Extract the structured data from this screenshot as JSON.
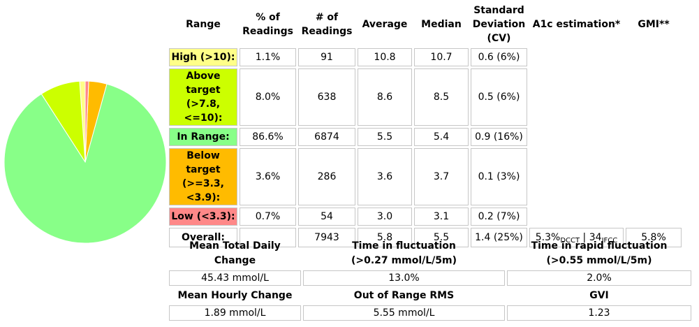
{
  "colors": {
    "high": "#ffff88",
    "above": "#ccff00",
    "inrange": "#88ff88",
    "below": "#ffbb00",
    "low": "#ff8888"
  },
  "chart_data": {
    "type": "pie",
    "slices": [
      {
        "label": "High (>10):",
        "value": 1.1,
        "color": "#ffff88"
      },
      {
        "label": "Above target (>7.8, <=10):",
        "value": 8.0,
        "color": "#ccff00"
      },
      {
        "label": "In Range:",
        "value": 86.6,
        "color": "#88ff88"
      },
      {
        "label": "Below target (>=3.3, <3.9):",
        "value": 3.6,
        "color": "#ffbb00"
      },
      {
        "label": "Low (<3.3):",
        "value": 0.7,
        "color": "#ff8888"
      }
    ]
  },
  "headers": {
    "range": "Range",
    "pct": "% of Readings",
    "num": "# of Readings",
    "average": "Average",
    "median": "Median",
    "sd": "Standard Deviation (CV)",
    "a1c": "A1c estimation*",
    "gmi": "GMI**"
  },
  "rows": [
    {
      "label": "High (>10):",
      "pct": "1.1%",
      "num": "91",
      "avg": "10.8",
      "median": "10.7",
      "sd": "0.6 (6%)"
    },
    {
      "label": "Above target (>7.8, <=10):",
      "pct": "8.0%",
      "num": "638",
      "avg": "8.6",
      "median": "8.5",
      "sd": "0.5 (6%)"
    },
    {
      "label": "In Range:",
      "pct": "86.6%",
      "num": "6874",
      "avg": "5.5",
      "median": "5.4",
      "sd": "0.9 (16%)"
    },
    {
      "label": "Below target (>=3.3, <3.9):",
      "pct": "3.6%",
      "num": "286",
      "avg": "3.6",
      "median": "3.7",
      "sd": "0.1 (3%)"
    },
    {
      "label": "Low (<3.3):",
      "pct": "0.7%",
      "num": "54",
      "avg": "3.0",
      "median": "3.1",
      "sd": "0.2 (7%)"
    }
  ],
  "overall": {
    "label": "Overall:",
    "num": "7943",
    "avg": "5.8",
    "median": "5.5",
    "sd": "1.4 (25%)",
    "a1c_dcct": "5.3%",
    "a1c_dcct_sub": "DCCT",
    "a1c_sep": " | ",
    "a1c_ifcc": "34",
    "a1c_ifcc_sub": "IFCC",
    "gmi": "5.8%"
  },
  "fluctuation": {
    "mean_total_daily_change_label": "Mean Total Daily Change",
    "time_in_fluct_label": "Time in fluctuation",
    "time_in_fluct_sub": "(>0.27 mmol/L/5m)",
    "time_in_rapid_label": "Time in rapid fluctuation",
    "time_in_rapid_sub": "(>0.55 mmol/L/5m)",
    "mean_total_daily_change": "45.43 mmol/L",
    "time_in_fluct": "13.0%",
    "time_in_rapid": "2.0%",
    "mean_hourly_change_label": "Mean Hourly Change",
    "out_of_range_rms_label": "Out of Range RMS",
    "gvi_label": "GVI",
    "mean_hourly_change": "1.89 mmol/L",
    "out_of_range_rms": "5.55 mmol/L",
    "gvi": "1.23"
  }
}
